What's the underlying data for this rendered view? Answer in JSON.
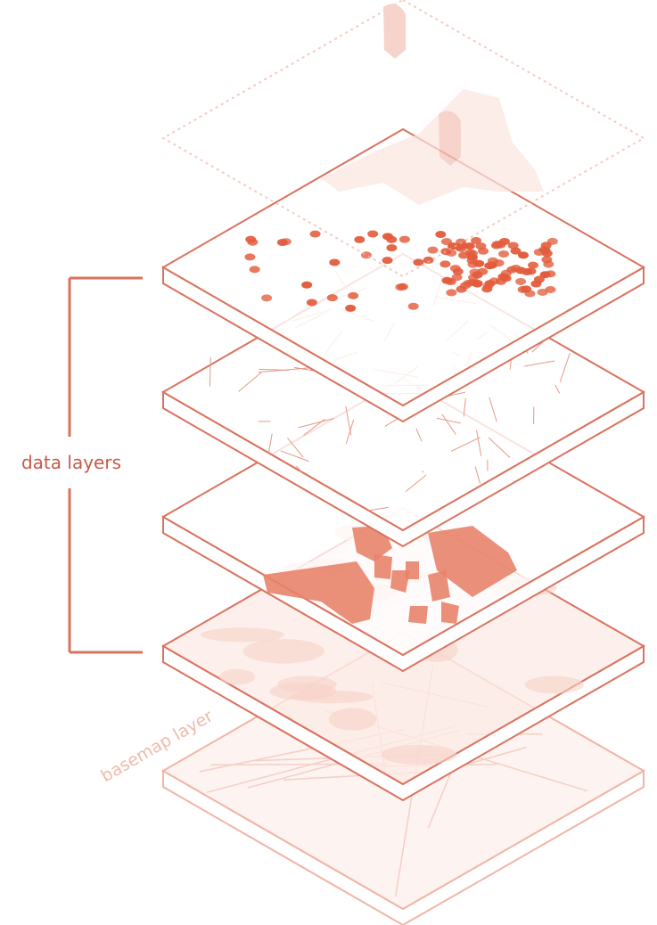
{
  "labels": {
    "data_layers": "data layers",
    "basemap_layer": "basemap layer"
  }
}
